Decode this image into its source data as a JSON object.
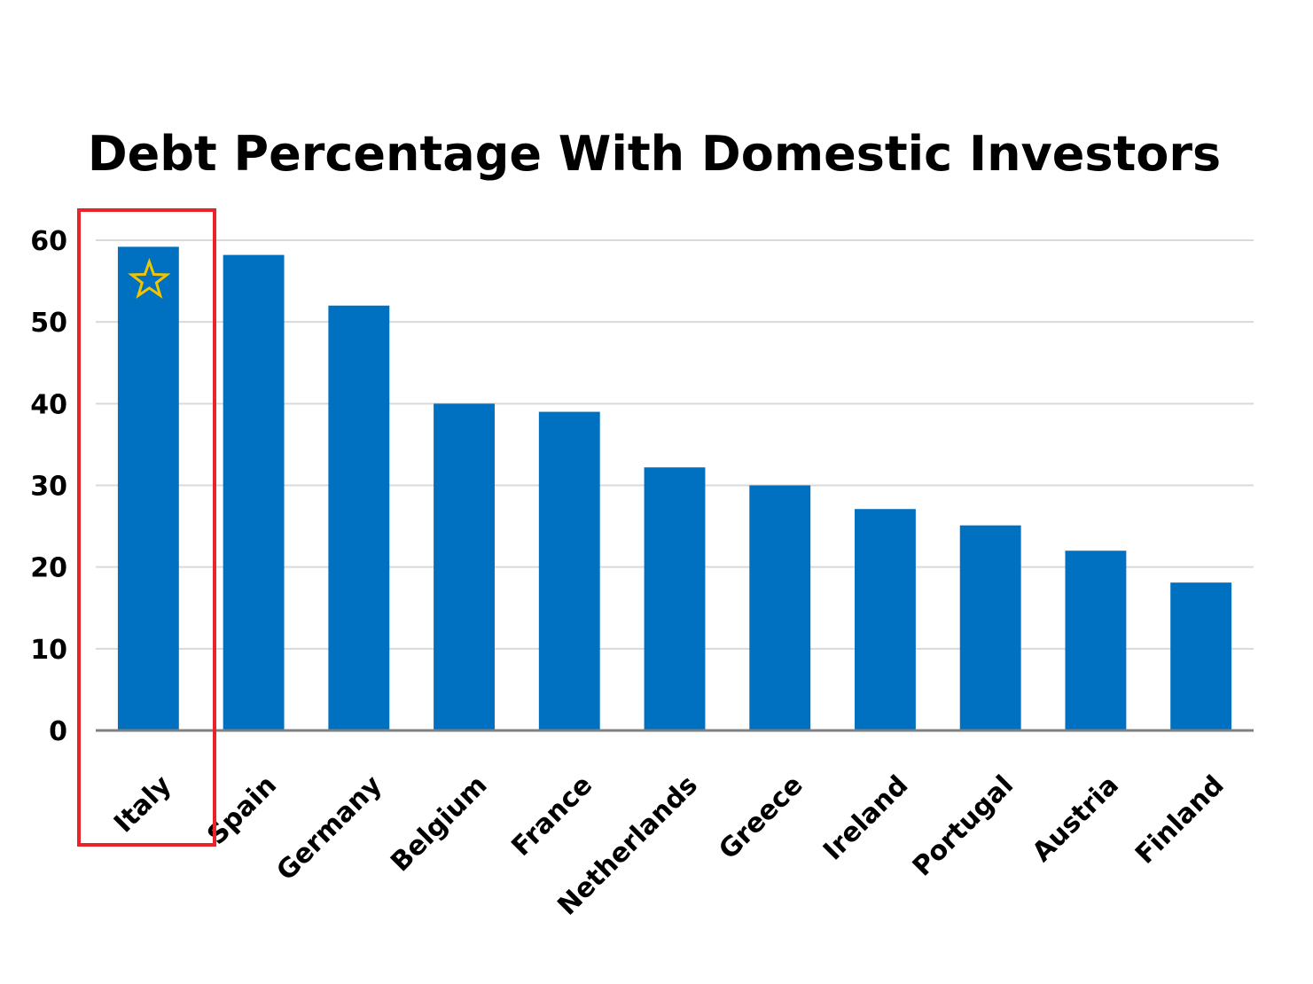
{
  "chart_data": {
    "type": "bar",
    "title": "Debt Percentage With Domestic Investors",
    "xlabel": "",
    "ylabel": "",
    "categories": [
      "Italy",
      "Spain",
      "Germany",
      "Belgium",
      "France",
      "Netherlands",
      "Greece",
      "Ireland",
      "Portugal",
      "Austria",
      "Finland"
    ],
    "values": [
      59.2,
      58.2,
      52.0,
      40.0,
      39.0,
      32.2,
      30.0,
      27.1,
      25.1,
      22.0,
      18.1
    ],
    "ylim": [
      0,
      60
    ],
    "yticks": [
      0,
      10,
      20,
      30,
      40,
      50,
      60
    ],
    "grid": true,
    "legend": "none",
    "bar_color": "#0070c0",
    "highlight": {
      "category": "Italy",
      "box_color": "#e8242a",
      "marker": "star-icon",
      "marker_color": "#f2c400"
    }
  }
}
